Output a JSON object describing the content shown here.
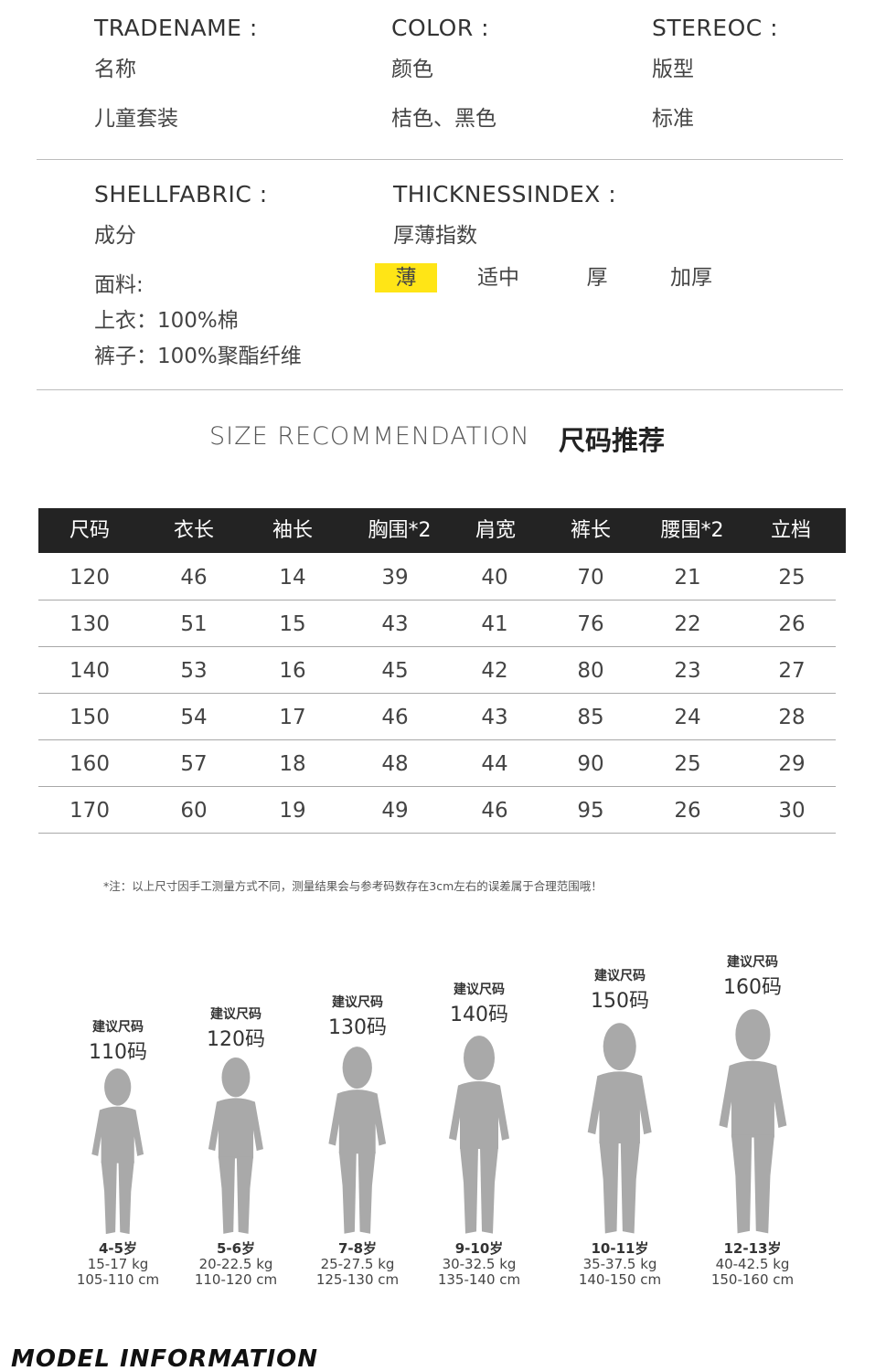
{
  "attributes": {
    "tradename_en": "TRADENAME :",
    "tradename_cn": "名称",
    "tradename_value": "儿童套装",
    "color_en": "COLOR :",
    "color_cn": "颜色",
    "color_value": "桔色、黑色",
    "stereo_en": "STEREOC :",
    "stereo_cn": "版型",
    "stereo_value": "标准",
    "shellfabric_en": "SHELLFABRIC :",
    "shellfabric_cn": "成分",
    "fabric_label": "面料:",
    "fabric_top": "上衣：100%棉",
    "fabric_pants": "裤子：100%聚酯纤维",
    "thickness_en": "THICKNESSINDEX :",
    "thickness_cn": "厚薄指数",
    "thickness_options": [
      "薄",
      "适中",
      "厚",
      "加厚"
    ],
    "thickness_selected": "薄",
    "highlight_color": "#ffe516"
  },
  "size_section": {
    "title_en": "SIZE RECOMMENDATION",
    "title_cn": "尺码推荐"
  },
  "size_table": {
    "headers": [
      "尺码",
      "衣长",
      "袖长",
      "胸围*2",
      "肩宽",
      "裤长",
      "腰围*2",
      "立档"
    ],
    "rows": [
      [
        "120",
        "46",
        "14",
        "39",
        "40",
        "70",
        "21",
        "25"
      ],
      [
        "130",
        "51",
        "15",
        "43",
        "41",
        "76",
        "22",
        "26"
      ],
      [
        "140",
        "53",
        "16",
        "45",
        "42",
        "80",
        "23",
        "27"
      ],
      [
        "150",
        "54",
        "17",
        "46",
        "43",
        "85",
        "24",
        "28"
      ],
      [
        "160",
        "57",
        "18",
        "48",
        "44",
        "90",
        "25",
        "29"
      ],
      [
        "170",
        "60",
        "19",
        "49",
        "46",
        "95",
        "26",
        "30"
      ]
    ]
  },
  "note": "*注：以上尺寸因手工测量方式不同，测量结果会与参考码数存在3cm左右的误差属于合理范围哦！",
  "figures": [
    {
      "suggest": "建议尺码",
      "size": "110码",
      "age": "4-5岁",
      "weight": "15-17 kg",
      "height": "105-110 cm"
    },
    {
      "suggest": "建议尺码",
      "size": "120码",
      "age": "5-6岁",
      "weight": "20-22.5 kg",
      "height": "110-120 cm"
    },
    {
      "suggest": "建议尺码",
      "size": "130码",
      "age": "7-8岁",
      "weight": "25-27.5 kg",
      "height": "125-130 cm"
    },
    {
      "suggest": "建议尺码",
      "size": "140码",
      "age": "9-10岁",
      "weight": "30-32.5 kg",
      "height": "135-140 cm"
    },
    {
      "suggest": "建议尺码",
      "size": "150码",
      "age": "10-11岁",
      "weight": "35-37.5 kg",
      "height": "140-150 cm"
    },
    {
      "suggest": "建议尺码",
      "size": "160码",
      "age": "12-13岁",
      "weight": "40-42.5 kg",
      "height": "150-160 cm"
    }
  ],
  "model_info": "MODEL INFORMATION"
}
